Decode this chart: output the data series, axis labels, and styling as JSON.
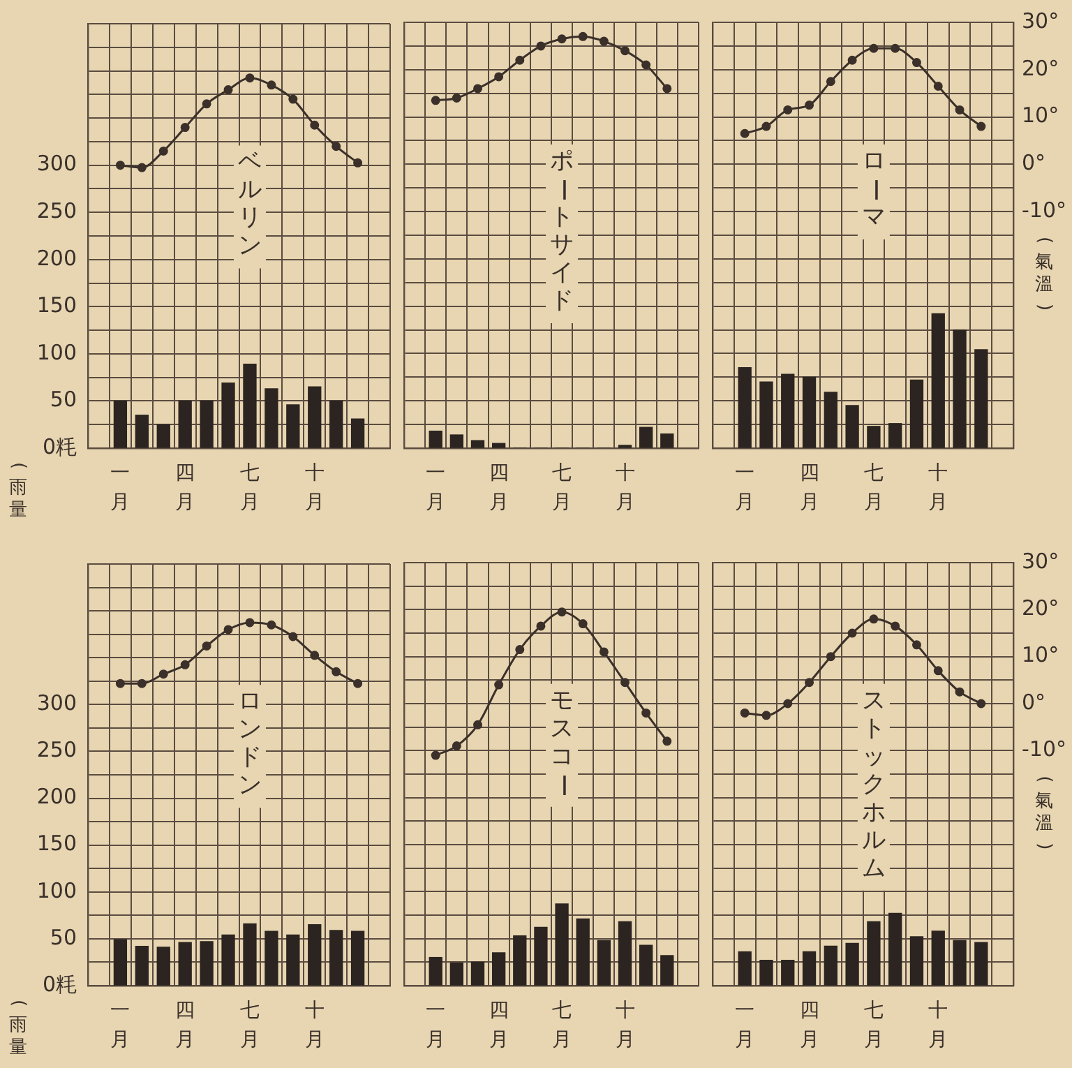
{
  "chart_data": [
    {
      "type": "bar",
      "title": "ベルリン",
      "ylabel": "(雨量)",
      "categories": [
        "一月",
        null,
        null,
        "四月",
        null,
        null,
        "七月",
        null,
        null,
        "十月",
        null,
        null
      ],
      "ylim": [
        0,
        450
      ],
      "y2lim": [
        -60,
        30
      ],
      "yticks": [
        {
          "value": 0,
          "label": "0粍"
        },
        {
          "value": 25,
          "label": null
        },
        50,
        {
          "value": 75,
          "label": null
        },
        100,
        {
          "value": 125,
          "label": null
        },
        150,
        {
          "value": 175,
          "label": null
        },
        200,
        {
          "value": 225,
          "label": null
        },
        250,
        {
          "value": 275,
          "label": null
        },
        300,
        {
          "value": 325,
          "label": null
        },
        {
          "value": 350,
          "label": null
        },
        {
          "value": 375,
          "label": null
        },
        {
          "value": 400,
          "label": null
        },
        {
          "value": 425,
          "label": null
        },
        {
          "value": 450,
          "label": null
        }
      ],
      "tick_labels": [
        "x",
        "y"
      ],
      "grid": true,
      "legend": false,
      "marker": "circle",
      "series": [
        {
          "color": "#2b2420",
          "values": [
            50,
            35,
            25,
            50,
            50,
            69,
            89,
            63,
            46,
            65,
            50,
            31
          ]
        },
        {
          "type": "line",
          "axis": "y2",
          "color": "#3b302a",
          "values": [
            0,
            -0.5,
            3,
            8,
            13,
            16,
            18.5,
            17,
            14,
            8.5,
            4,
            0.5
          ]
        }
      ]
    },
    {
      "type": "bar",
      "title": "ポートサイド",
      "categories": [
        "一月",
        null,
        null,
        "四月",
        null,
        null,
        "七月",
        null,
        null,
        "十月",
        null,
        null
      ],
      "ylim": [
        0,
        450
      ],
      "y2lim": [
        -60,
        30
      ],
      "yticks": [
        0,
        25,
        50,
        75,
        100,
        125,
        150,
        175,
        200,
        225,
        250,
        275,
        300,
        325,
        350,
        375,
        400,
        425,
        450
      ],
      "tick_labels": "x",
      "grid": true,
      "legend": false,
      "marker": "circle",
      "series": [
        {
          "color": "#2b2420",
          "values": [
            18,
            14,
            8,
            5,
            0,
            0,
            0,
            0,
            0,
            3,
            22,
            15
          ]
        },
        {
          "type": "line",
          "axis": "y2",
          "color": "#3b302a",
          "values": [
            13.5,
            14,
            16,
            18.5,
            22,
            25,
            26.5,
            27,
            26,
            24,
            21,
            16
          ]
        }
      ]
    },
    {
      "type": "bar",
      "title": "ローマ",
      "y2label": "(氣溫)",
      "categories": [
        "一月",
        null,
        null,
        "四月",
        null,
        null,
        "七月",
        null,
        null,
        "十月",
        null,
        null
      ],
      "ylim": [
        0,
        450
      ],
      "y2lim": [
        -60,
        30
      ],
      "y2ticks": [
        {
          "value": -10,
          "label": "-10°"
        },
        {
          "value": 0,
          "label": "0°"
        },
        {
          "value": 10,
          "label": "10°"
        },
        {
          "value": 20,
          "label": "20°"
        },
        {
          "value": 30,
          "label": "30°"
        }
      ],
      "tick_labels": [
        "x",
        "y2"
      ],
      "grid": true,
      "legend": false,
      "marker": "circle",
      "series": [
        {
          "color": "#2b2420",
          "values": [
            85,
            70,
            78,
            75,
            59,
            45,
            23,
            26,
            72,
            142,
            125,
            104
          ]
        },
        {
          "type": "line",
          "axis": "y2",
          "color": "#3b302a",
          "values": [
            6.5,
            8,
            11.5,
            12.5,
            17.5,
            22,
            24.5,
            24.5,
            21.5,
            16.5,
            11.5,
            8
          ]
        }
      ]
    },
    {
      "type": "bar",
      "title": "ロンドン",
      "ylabel": "(雨量)",
      "categories": [
        "一月",
        null,
        null,
        "四月",
        null,
        null,
        "七月",
        null,
        null,
        "十月",
        null,
        null
      ],
      "ylim": [
        0,
        450
      ],
      "y2lim": [
        -60,
        30
      ],
      "yticks": [
        {
          "value": 0,
          "label": "0粍"
        },
        {
          "value": 25,
          "label": null
        },
        50,
        {
          "value": 75,
          "label": null
        },
        100,
        {
          "value": 125,
          "label": null
        },
        150,
        {
          "value": 175,
          "label": null
        },
        200,
        {
          "value": 225,
          "label": null
        },
        250,
        {
          "value": 275,
          "label": null
        },
        300,
        {
          "value": 325,
          "label": null
        },
        {
          "value": 350,
          "label": null
        },
        {
          "value": 375,
          "label": null
        },
        {
          "value": 400,
          "label": null
        },
        {
          "value": 425,
          "label": null
        },
        {
          "value": 450,
          "label": null
        }
      ],
      "tick_labels": [
        "x",
        "y"
      ],
      "grid": true,
      "legend": false,
      "marker": "circle",
      "series": [
        {
          "color": "#2b2420",
          "values": [
            49,
            42,
            41,
            46,
            47,
            54,
            66,
            58,
            54,
            65,
            59,
            58
          ]
        },
        {
          "type": "line",
          "axis": "y2",
          "color": "#3b302a",
          "values": [
            4.5,
            4.5,
            6.5,
            8.5,
            12.5,
            16,
            17.5,
            17,
            14.5,
            10.5,
            7,
            4.5
          ]
        }
      ]
    },
    {
      "type": "bar",
      "title": "モスコー",
      "categories": [
        "一月",
        null,
        null,
        "四月",
        null,
        null,
        "七月",
        null,
        null,
        "十月",
        null,
        null
      ],
      "ylim": [
        0,
        450
      ],
      "y2lim": [
        -60,
        30
      ],
      "yticks": [
        0,
        25,
        50,
        75,
        100,
        125,
        150,
        175,
        200,
        225,
        250,
        275,
        300,
        325,
        350,
        375,
        400,
        425,
        450
      ],
      "tick_labels": "x",
      "grid": true,
      "legend": false,
      "marker": "circle",
      "series": [
        {
          "color": "#2b2420",
          "values": [
            30,
            24,
            25,
            35,
            53,
            62,
            87,
            71,
            48,
            68,
            43,
            32
          ]
        },
        {
          "type": "line",
          "axis": "y2",
          "color": "#3b302a",
          "values": [
            -11,
            -9,
            -4.5,
            4,
            11.5,
            16.5,
            19.5,
            17,
            11,
            4.5,
            -2,
            -8
          ]
        }
      ]
    },
    {
      "type": "bar",
      "title": "ストックホルム",
      "y2label": "(氣溫)",
      "categories": [
        "一月",
        null,
        null,
        "四月",
        null,
        null,
        "七月",
        null,
        null,
        "十月",
        null,
        null
      ],
      "ylim": [
        0,
        450
      ],
      "y2lim": [
        -60,
        30
      ],
      "y2ticks": [
        {
          "value": -10,
          "label": "-10°"
        },
        {
          "value": 0,
          "label": "0°"
        },
        {
          "value": 10,
          "label": "10°"
        },
        {
          "value": 20,
          "label": "20°"
        },
        {
          "value": 30,
          "label": "30°"
        }
      ],
      "tick_labels": [
        "x",
        "y2"
      ],
      "grid": true,
      "legend": false,
      "marker": "circle",
      "series": [
        {
          "color": "#2b2420",
          "values": [
            36,
            27,
            27,
            36,
            42,
            45,
            68,
            77,
            52,
            58,
            48,
            46
          ]
        },
        {
          "type": "line",
          "axis": "y2",
          "color": "#3b302a",
          "values": [
            -2,
            -2.5,
            0,
            4.5,
            10,
            15,
            18,
            16.5,
            12.5,
            7,
            2.5,
            0
          ]
        }
      ]
    }
  ]
}
